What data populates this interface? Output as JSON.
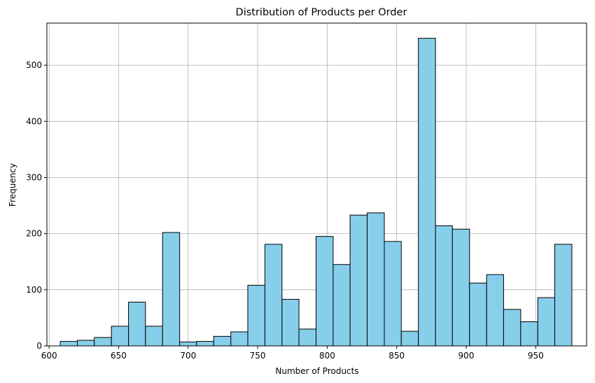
{
  "chart_data": {
    "type": "bar",
    "title": "Distribution of Products per Order",
    "xlabel": "Number of Products",
    "ylabel": "Frequency",
    "xlim": [
      598.4,
      986.6
    ],
    "ylim": [
      0,
      575
    ],
    "xticks": [
      600,
      650,
      700,
      750,
      800,
      850,
      900,
      950
    ],
    "yticks": [
      0,
      100,
      200,
      300,
      400,
      500
    ],
    "grid": true,
    "bar_color": "#87ceeb",
    "edge_color": "#000000",
    "bin_edges": [
      608.0,
      620.3,
      632.5,
      644.8,
      657.1,
      669.3,
      681.6,
      693.9,
      706.1,
      718.4,
      730.7,
      742.9,
      755.2,
      767.5,
      779.7,
      792.0,
      804.3,
      816.5,
      828.8,
      841.1,
      853.3,
      865.6,
      877.9,
      890.1,
      902.4,
      914.7,
      926.9,
      939.2,
      951.5,
      963.7,
      976.0
    ],
    "values": [
      8,
      10,
      15,
      35,
      78,
      35,
      202,
      7,
      8,
      17,
      25,
      108,
      181,
      83,
      30,
      195,
      145,
      233,
      237,
      186,
      26,
      548,
      214,
      208,
      112,
      127,
      65,
      43,
      86,
      181
    ]
  }
}
